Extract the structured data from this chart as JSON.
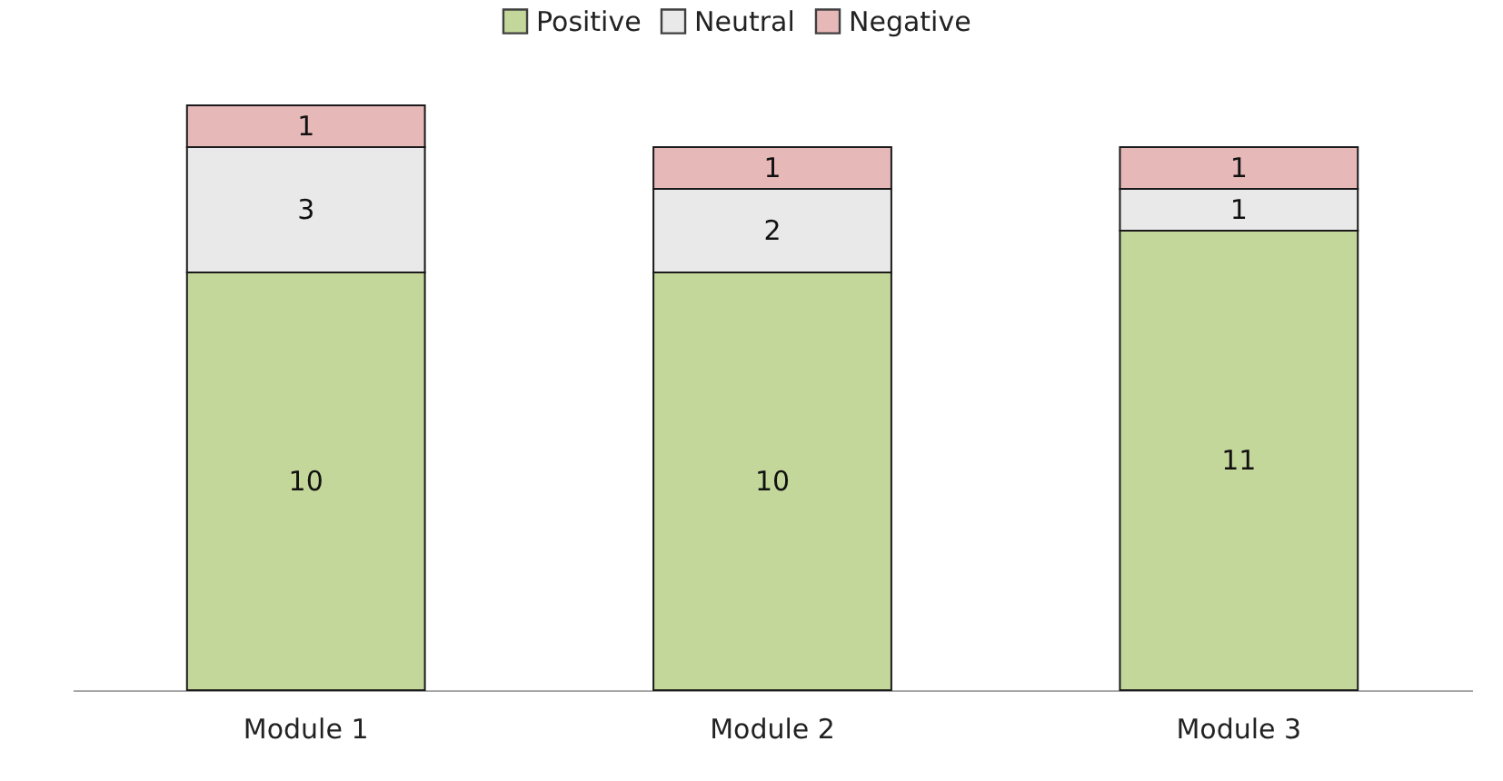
{
  "chart_data": {
    "type": "bar",
    "stacked": true,
    "categories": [
      "Module 1",
      "Module 2",
      "Module 3"
    ],
    "series": [
      {
        "name": "Positive",
        "color": "#c4d79b",
        "values": [
          10,
          10,
          11
        ]
      },
      {
        "name": "Neutral",
        "color": "#e9e9e9",
        "values": [
          3,
          2,
          1
        ]
      },
      {
        "name": "Negative",
        "color": "#e6b9b8",
        "values": [
          1,
          1,
          1
        ]
      }
    ],
    "data_labels": true,
    "legend": "top",
    "grid": false,
    "tick_labels": "x"
  }
}
